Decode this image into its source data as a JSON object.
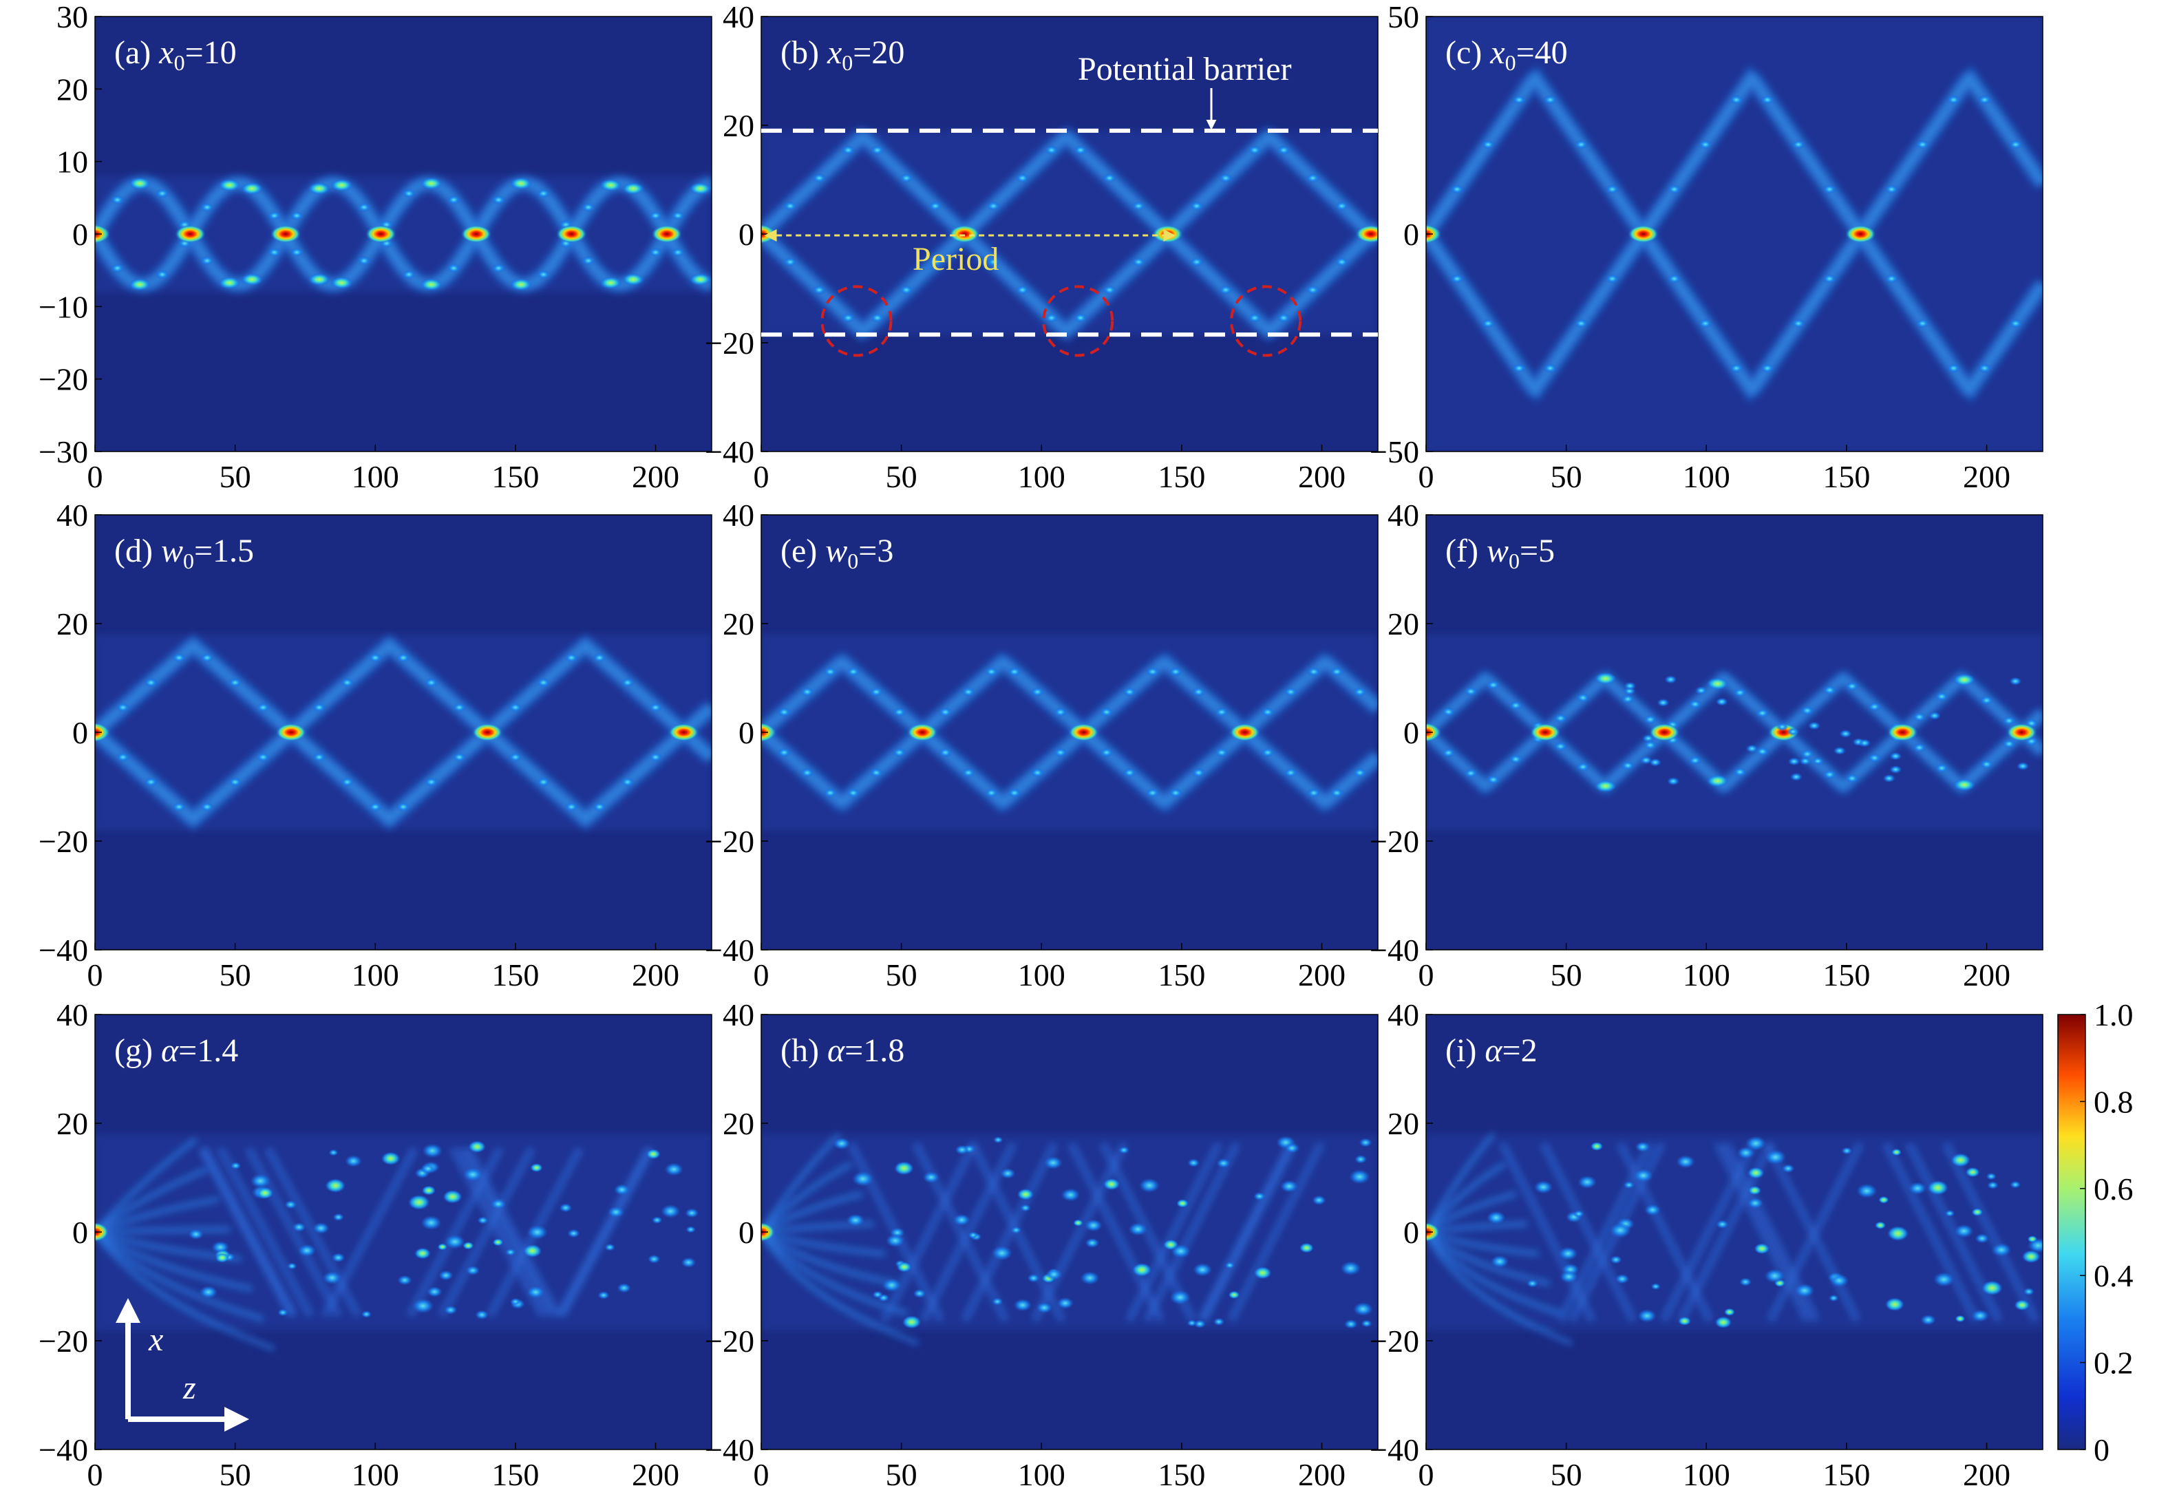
{
  "chart_data": {
    "type": "heatmap",
    "xaxis": {
      "range": [
        0,
        220
      ],
      "ticks": [
        0,
        50,
        100,
        150,
        200
      ]
    },
    "colorbar": {
      "range": [
        0,
        1
      ],
      "ticks": [
        0,
        0.2,
        0.4,
        0.6,
        0.8,
        1.0
      ],
      "tick_labels": [
        "0",
        "0.2",
        "0.4",
        "0.6",
        "0.8",
        "1.0"
      ],
      "colormap": "jet"
    },
    "axis_indicator": {
      "vertical_label": "x",
      "horizontal_label": "z"
    },
    "panels": [
      {
        "id": "a",
        "tag": "(a)",
        "sym": "x",
        "sub": "0",
        "val": "=10",
        "ylim": [
          -30,
          30
        ],
        "yticks": [
          -30,
          -20,
          -10,
          0,
          10,
          20,
          30
        ],
        "ytick_labels": [
          "−30",
          "−20",
          "−10",
          "0",
          "10",
          "20",
          "30"
        ],
        "mode": "breather",
        "amplitude": 7,
        "period": 68,
        "barrier": [
          -8,
          8
        ]
      },
      {
        "id": "b",
        "tag": "(b)",
        "sym": "x",
        "sub": "0",
        "val": "=20",
        "ylim": [
          -40,
          40
        ],
        "yticks": [
          -40,
          -20,
          0,
          20,
          40
        ],
        "ytick_labels": [
          "−40",
          "−20",
          "0",
          "20",
          "40"
        ],
        "mode": "zigzag",
        "amplitude": 18,
        "period": 145,
        "barrier": [
          -18.5,
          19
        ],
        "annotations": {
          "barrier_label": "Potential barrier",
          "period_label": "Period",
          "barrier_lines": [
            19,
            -18.5
          ],
          "period_arrow": {
            "from": 2,
            "to": 147,
            "x": 0
          },
          "circles": [
            {
              "z": 34,
              "x": -16
            },
            {
              "z": 113,
              "x": -16
            },
            {
              "z": 180,
              "x": -16
            }
          ]
        }
      },
      {
        "id": "c",
        "tag": "(c)",
        "sym": "x",
        "sub": "0",
        "val": "=40",
        "ylim": [
          -50,
          50
        ],
        "yticks": [
          -50,
          0,
          50
        ],
        "ytick_labels": [
          "−50",
          "0",
          "50"
        ],
        "mode": "zigzag",
        "amplitude": 36,
        "period": 155,
        "barrier": [
          -50,
          50
        ]
      },
      {
        "id": "d",
        "tag": "(d)",
        "sym": "w",
        "sub": "0",
        "val": "=1.5",
        "ylim": [
          -40,
          40
        ],
        "yticks": [
          -40,
          -20,
          0,
          20,
          40
        ],
        "ytick_labels": [
          "−40",
          "−20",
          "0",
          "20",
          "40"
        ],
        "mode": "zigzag",
        "amplitude": 16,
        "period": 140,
        "barrier": [
          -18,
          18
        ]
      },
      {
        "id": "e",
        "tag": "(e)",
        "sym": "w",
        "sub": "0",
        "val": "=3",
        "ylim": [
          -40,
          40
        ],
        "yticks": [
          -40,
          -20,
          0,
          20,
          40
        ],
        "ytick_labels": [
          "−40",
          "−20",
          "0",
          "20",
          "40"
        ],
        "mode": "zigzag",
        "amplitude": 13,
        "period": 115,
        "barrier": [
          -18,
          18
        ]
      },
      {
        "id": "f",
        "tag": "(f)",
        "sym": "w",
        "sub": "0",
        "val": "=5",
        "ylim": [
          -40,
          40
        ],
        "yticks": [
          -40,
          -20,
          0,
          20,
          40
        ],
        "ytick_labels": [
          "−40",
          "−20",
          "0",
          "20",
          "40"
        ],
        "mode": "distorted",
        "amplitude": 10,
        "period": 85,
        "barrier": [
          -18,
          18
        ]
      },
      {
        "id": "g",
        "tag": "(g)",
        "sym": "α",
        "sub": "",
        "val": "=1.4",
        "ylim": [
          -40,
          40
        ],
        "yticks": [
          -40,
          -20,
          0,
          20,
          40
        ],
        "ytick_labels": [
          "−40",
          "−20",
          "0",
          "20",
          "40"
        ],
        "mode": "chaotic",
        "amplitude": 17,
        "period": 36,
        "barrier": [
          -18,
          18
        ]
      },
      {
        "id": "h",
        "tag": "(h)",
        "sym": "α",
        "sub": "",
        "val": "=1.8",
        "ylim": [
          -40,
          40
        ],
        "yticks": [
          -40,
          -20,
          0,
          20,
          40
        ],
        "ytick_labels": [
          "−40",
          "−20",
          "0",
          "20",
          "40"
        ],
        "mode": "chaotic",
        "amplitude": 18,
        "period": 28,
        "barrier": [
          -18,
          18
        ]
      },
      {
        "id": "i",
        "tag": "(i)",
        "sym": "α",
        "sub": "",
        "val": "=2",
        "ylim": [
          -40,
          40
        ],
        "yticks": [
          -40,
          -20,
          0,
          20,
          40
        ],
        "ytick_labels": [
          "−40",
          "−20",
          "0",
          "20",
          "40"
        ],
        "mode": "chaotic",
        "amplitude": 18,
        "period": 24,
        "barrier": [
          -18,
          18
        ]
      }
    ]
  }
}
